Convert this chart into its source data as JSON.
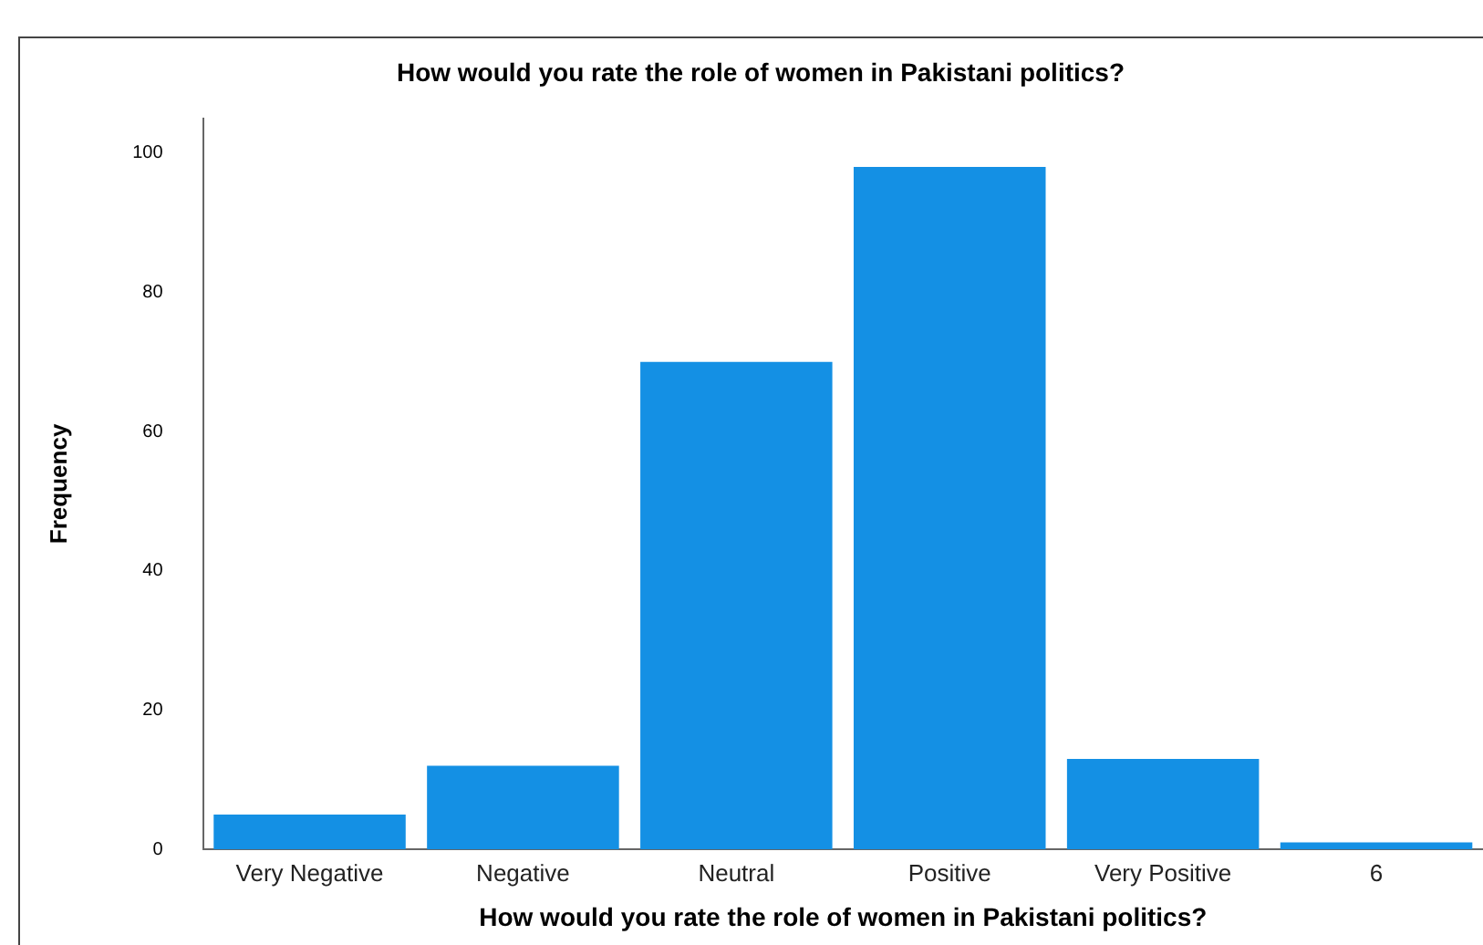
{
  "chart_data": {
    "type": "bar",
    "title": "How would you rate the role of women in Pakistani politics?",
    "xlabel": "How would you rate the role of women in Pakistani politics?",
    "ylabel": "Frequency",
    "categories": [
      "Very Negative",
      "Negative",
      "Neutral",
      "Positive",
      "Very Positive",
      "6"
    ],
    "values": [
      5,
      12,
      70,
      98,
      13,
      1
    ],
    "color": "#1490e4",
    "ylim": [
      0,
      105
    ],
    "yticks": [
      0,
      20,
      40,
      60,
      80,
      100
    ],
    "grid": false,
    "legend": false
  }
}
